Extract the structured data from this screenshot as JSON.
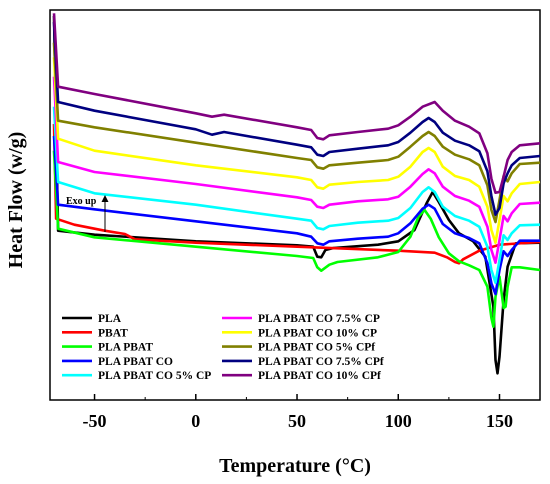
{
  "chart_data": {
    "type": "line",
    "title": "",
    "xlabel": "Temperature (°C)",
    "ylabel": "Heat Flow (w/g)",
    "xlim": [
      -72,
      170
    ],
    "xticks": [
      -50,
      0,
      50,
      100,
      150
    ],
    "xtick_labels": [
      "-50",
      "0",
      "50",
      "100",
      "150"
    ],
    "yticks_shown": false,
    "grid": false,
    "legend_placement": "bottom-left",
    "annotation": "Exo up",
    "series": [
      {
        "name": "PLA",
        "color": "#000000",
        "points": [
          [
            -70,
            3.46
          ],
          [
            -68,
            0.24
          ],
          [
            -50,
            0.18
          ],
          [
            0,
            0.08
          ],
          [
            50,
            0.02
          ],
          [
            58,
            0.0
          ],
          [
            60,
            -0.15
          ],
          [
            62,
            -0.16
          ],
          [
            64,
            -0.05
          ],
          [
            68,
            -0.02
          ],
          [
            90,
            0.03
          ],
          [
            100,
            0.08
          ],
          [
            108,
            0.25
          ],
          [
            114,
            0.65
          ],
          [
            117,
            0.82
          ],
          [
            120,
            0.67
          ],
          [
            125,
            0.4
          ],
          [
            130,
            0.2
          ],
          [
            137,
            0.08
          ],
          [
            143,
            -0.15
          ],
          [
            147,
            -0.9
          ],
          [
            148,
            -1.7
          ],
          [
            149,
            -1.9
          ],
          [
            150,
            -1.65
          ],
          [
            152,
            -0.8
          ],
          [
            154,
            -0.3
          ],
          [
            158,
            0.05
          ],
          [
            170,
            0.06
          ]
        ]
      },
      {
        "name": "PBAT",
        "color": "#ff0000",
        "points": [
          [
            -70,
            1.84
          ],
          [
            -69,
            0.42
          ],
          [
            -60,
            0.33
          ],
          [
            -45,
            0.24
          ],
          [
            -35,
            0.19
          ],
          [
            -30,
            0.11
          ],
          [
            0,
            0.06
          ],
          [
            50,
            0.0
          ],
          [
            100,
            -0.06
          ],
          [
            118,
            -0.09
          ],
          [
            124,
            -0.16
          ],
          [
            128,
            -0.23
          ],
          [
            130,
            -0.25
          ],
          [
            132,
            -0.19
          ],
          [
            140,
            -0.06
          ],
          [
            150,
            0.03
          ],
          [
            170,
            0.07
          ]
        ]
      },
      {
        "name": "PLA PBAT",
        "color": "#00ff00",
        "points": [
          [
            -70,
            1.44
          ],
          [
            -68,
            0.27
          ],
          [
            -50,
            0.14
          ],
          [
            0,
            0.0
          ],
          [
            50,
            -0.14
          ],
          [
            58,
            -0.17
          ],
          [
            60,
            -0.31
          ],
          [
            62,
            -0.36
          ],
          [
            66,
            -0.27
          ],
          [
            70,
            -0.23
          ],
          [
            90,
            -0.16
          ],
          [
            100,
            -0.08
          ],
          [
            106,
            0.15
          ],
          [
            110,
            0.45
          ],
          [
            113,
            0.55
          ],
          [
            116,
            0.42
          ],
          [
            120,
            0.14
          ],
          [
            125,
            -0.1
          ],
          [
            130,
            -0.22
          ],
          [
            135,
            -0.28
          ],
          [
            140,
            -0.35
          ],
          [
            144,
            -0.6
          ],
          [
            146,
            -1.07
          ],
          [
            147,
            -1.2
          ],
          [
            148,
            -0.75
          ],
          [
            150,
            -0.45
          ],
          [
            152,
            -0.92
          ],
          [
            153,
            -0.9
          ],
          [
            154,
            -0.6
          ],
          [
            156,
            -0.31
          ],
          [
            160,
            -0.31
          ],
          [
            170,
            -0.35
          ]
        ]
      },
      {
        "name": "PLA PBAT CO",
        "color": "#0000ff",
        "points": [
          [
            -70,
            1.66
          ],
          [
            -68,
            0.63
          ],
          [
            -50,
            0.56
          ],
          [
            0,
            0.38
          ],
          [
            50,
            0.2
          ],
          [
            57,
            0.15
          ],
          [
            60,
            0.05
          ],
          [
            63,
            0.03
          ],
          [
            66,
            0.08
          ],
          [
            80,
            0.12
          ],
          [
            95,
            0.15
          ],
          [
            100,
            0.2
          ],
          [
            106,
            0.35
          ],
          [
            112,
            0.57
          ],
          [
            115,
            0.63
          ],
          [
            118,
            0.57
          ],
          [
            122,
            0.34
          ],
          [
            128,
            0.2
          ],
          [
            135,
            0.13
          ],
          [
            140,
            0.05
          ],
          [
            144,
            -0.25
          ],
          [
            146,
            -0.55
          ],
          [
            148,
            -0.71
          ],
          [
            150,
            -0.35
          ],
          [
            152,
            -0.07
          ],
          [
            154,
            -0.14
          ],
          [
            156,
            -0.05
          ],
          [
            160,
            0.09
          ],
          [
            170,
            0.09
          ]
        ]
      },
      {
        "name": "PLA PBAT CO 5% CP",
        "color": "#00ffff",
        "points": [
          [
            -70,
            2.1
          ],
          [
            -68,
            0.97
          ],
          [
            -50,
            0.8
          ],
          [
            0,
            0.63
          ],
          [
            50,
            0.42
          ],
          [
            57,
            0.39
          ],
          [
            60,
            0.28
          ],
          [
            63,
            0.26
          ],
          [
            66,
            0.31
          ],
          [
            80,
            0.36
          ],
          [
            95,
            0.39
          ],
          [
            100,
            0.43
          ],
          [
            106,
            0.58
          ],
          [
            112,
            0.82
          ],
          [
            115,
            0.89
          ],
          [
            118,
            0.82
          ],
          [
            122,
            0.6
          ],
          [
            128,
            0.46
          ],
          [
            135,
            0.39
          ],
          [
            140,
            0.3
          ],
          [
            144,
            0.0
          ],
          [
            146,
            -0.35
          ],
          [
            148,
            -0.54
          ],
          [
            150,
            -0.2
          ],
          [
            152,
            0.17
          ],
          [
            154,
            0.1
          ],
          [
            156,
            0.2
          ],
          [
            160,
            0.32
          ],
          [
            170,
            0.33
          ]
        ]
      },
      {
        "name": "PLA PBAT CO 7.5% CP",
        "color": "#ff00ff",
        "points": [
          [
            -70,
            2.55
          ],
          [
            -68,
            1.27
          ],
          [
            -50,
            1.12
          ],
          [
            0,
            0.94
          ],
          [
            50,
            0.74
          ],
          [
            57,
            0.7
          ],
          [
            60,
            0.6
          ],
          [
            63,
            0.58
          ],
          [
            66,
            0.63
          ],
          [
            80,
            0.68
          ],
          [
            95,
            0.71
          ],
          [
            100,
            0.75
          ],
          [
            106,
            0.9
          ],
          [
            112,
            1.09
          ],
          [
            115,
            1.16
          ],
          [
            118,
            1.1
          ],
          [
            122,
            0.9
          ],
          [
            128,
            0.76
          ],
          [
            135,
            0.69
          ],
          [
            140,
            0.6
          ],
          [
            144,
            0.3
          ],
          [
            146,
            -0.05
          ],
          [
            148,
            -0.24
          ],
          [
            150,
            0.1
          ],
          [
            152,
            0.46
          ],
          [
            154,
            0.38
          ],
          [
            156,
            0.5
          ],
          [
            160,
            0.64
          ],
          [
            170,
            0.66
          ]
        ]
      },
      {
        "name": "PLA PBAT CO 10% CP",
        "color": "#ffff00",
        "points": [
          [
            -70,
            2.84
          ],
          [
            -68,
            1.62
          ],
          [
            -50,
            1.44
          ],
          [
            0,
            1.22
          ],
          [
            50,
            1.04
          ],
          [
            57,
            1.0
          ],
          [
            60,
            0.89
          ],
          [
            63,
            0.87
          ],
          [
            66,
            0.93
          ],
          [
            80,
            0.97
          ],
          [
            95,
            1.0
          ],
          [
            100,
            1.05
          ],
          [
            106,
            1.2
          ],
          [
            112,
            1.42
          ],
          [
            115,
            1.48
          ],
          [
            118,
            1.42
          ],
          [
            122,
            1.2
          ],
          [
            128,
            1.06
          ],
          [
            135,
            1.0
          ],
          [
            140,
            0.9
          ],
          [
            144,
            0.6
          ],
          [
            146,
            0.25
          ],
          [
            148,
            0.06
          ],
          [
            150,
            0.4
          ],
          [
            152,
            0.76
          ],
          [
            154,
            0.68
          ],
          [
            156,
            0.8
          ],
          [
            160,
            0.94
          ],
          [
            170,
            0.97
          ]
        ]
      },
      {
        "name": "PLA PBAT CO 5% CPf",
        "color": "#808000",
        "points": [
          [
            -70,
            3.06
          ],
          [
            -68,
            1.89
          ],
          [
            -50,
            1.79
          ],
          [
            0,
            1.56
          ],
          [
            50,
            1.33
          ],
          [
            57,
            1.3
          ],
          [
            60,
            1.19
          ],
          [
            63,
            1.17
          ],
          [
            66,
            1.22
          ],
          [
            80,
            1.26
          ],
          [
            95,
            1.3
          ],
          [
            100,
            1.35
          ],
          [
            106,
            1.5
          ],
          [
            112,
            1.66
          ],
          [
            115,
            1.72
          ],
          [
            118,
            1.66
          ],
          [
            122,
            1.5
          ],
          [
            128,
            1.38
          ],
          [
            135,
            1.31
          ],
          [
            140,
            1.22
          ],
          [
            144,
            0.92
          ],
          [
            146,
            0.55
          ],
          [
            148,
            0.37
          ],
          [
            150,
            0.7
          ],
          [
            152,
            1.06
          ],
          [
            154,
            0.98
          ],
          [
            156,
            1.1
          ],
          [
            160,
            1.24
          ],
          [
            170,
            1.26
          ]
        ]
      },
      {
        "name": "PLA PBAT CO 7.5% CPf",
        "color": "#000080",
        "points": [
          [
            -70,
            3.37
          ],
          [
            -68,
            2.17
          ],
          [
            -50,
            2.04
          ],
          [
            0,
            1.76
          ],
          [
            8,
            1.68
          ],
          [
            14,
            1.72
          ],
          [
            50,
            1.53
          ],
          [
            57,
            1.49
          ],
          [
            60,
            1.38
          ],
          [
            63,
            1.36
          ],
          [
            66,
            1.42
          ],
          [
            80,
            1.47
          ],
          [
            95,
            1.52
          ],
          [
            100,
            1.57
          ],
          [
            106,
            1.71
          ],
          [
            112,
            1.87
          ],
          [
            115,
            1.93
          ],
          [
            118,
            1.87
          ],
          [
            122,
            1.71
          ],
          [
            128,
            1.59
          ],
          [
            135,
            1.52
          ],
          [
            140,
            1.43
          ],
          [
            144,
            1.13
          ],
          [
            146,
            0.76
          ],
          [
            148,
            0.48
          ],
          [
            150,
            0.58
          ],
          [
            152,
            0.95
          ],
          [
            154,
            1.1
          ],
          [
            156,
            1.22
          ],
          [
            160,
            1.33
          ],
          [
            170,
            1.36
          ]
        ]
      },
      {
        "name": "PLA PBAT CO 10% CPf",
        "color": "#800080",
        "points": [
          [
            -70,
            3.5
          ],
          [
            -68,
            2.4
          ],
          [
            -50,
            2.29
          ],
          [
            0,
            2.0
          ],
          [
            8,
            1.95
          ],
          [
            14,
            1.98
          ],
          [
            50,
            1.79
          ],
          [
            57,
            1.75
          ],
          [
            60,
            1.63
          ],
          [
            63,
            1.61
          ],
          [
            66,
            1.67
          ],
          [
            80,
            1.72
          ],
          [
            95,
            1.77
          ],
          [
            100,
            1.82
          ],
          [
            106,
            1.95
          ],
          [
            112,
            2.1
          ],
          [
            118,
            2.17
          ],
          [
            122,
            2.04
          ],
          [
            128,
            1.89
          ],
          [
            135,
            1.8
          ],
          [
            140,
            1.7
          ],
          [
            144,
            1.4
          ],
          [
            146,
            1.02
          ],
          [
            148,
            0.81
          ],
          [
            150,
            0.82
          ],
          [
            152,
            1.05
          ],
          [
            154,
            1.3
          ],
          [
            156,
            1.42
          ],
          [
            160,
            1.52
          ],
          [
            170,
            1.55
          ]
        ]
      }
    ]
  }
}
